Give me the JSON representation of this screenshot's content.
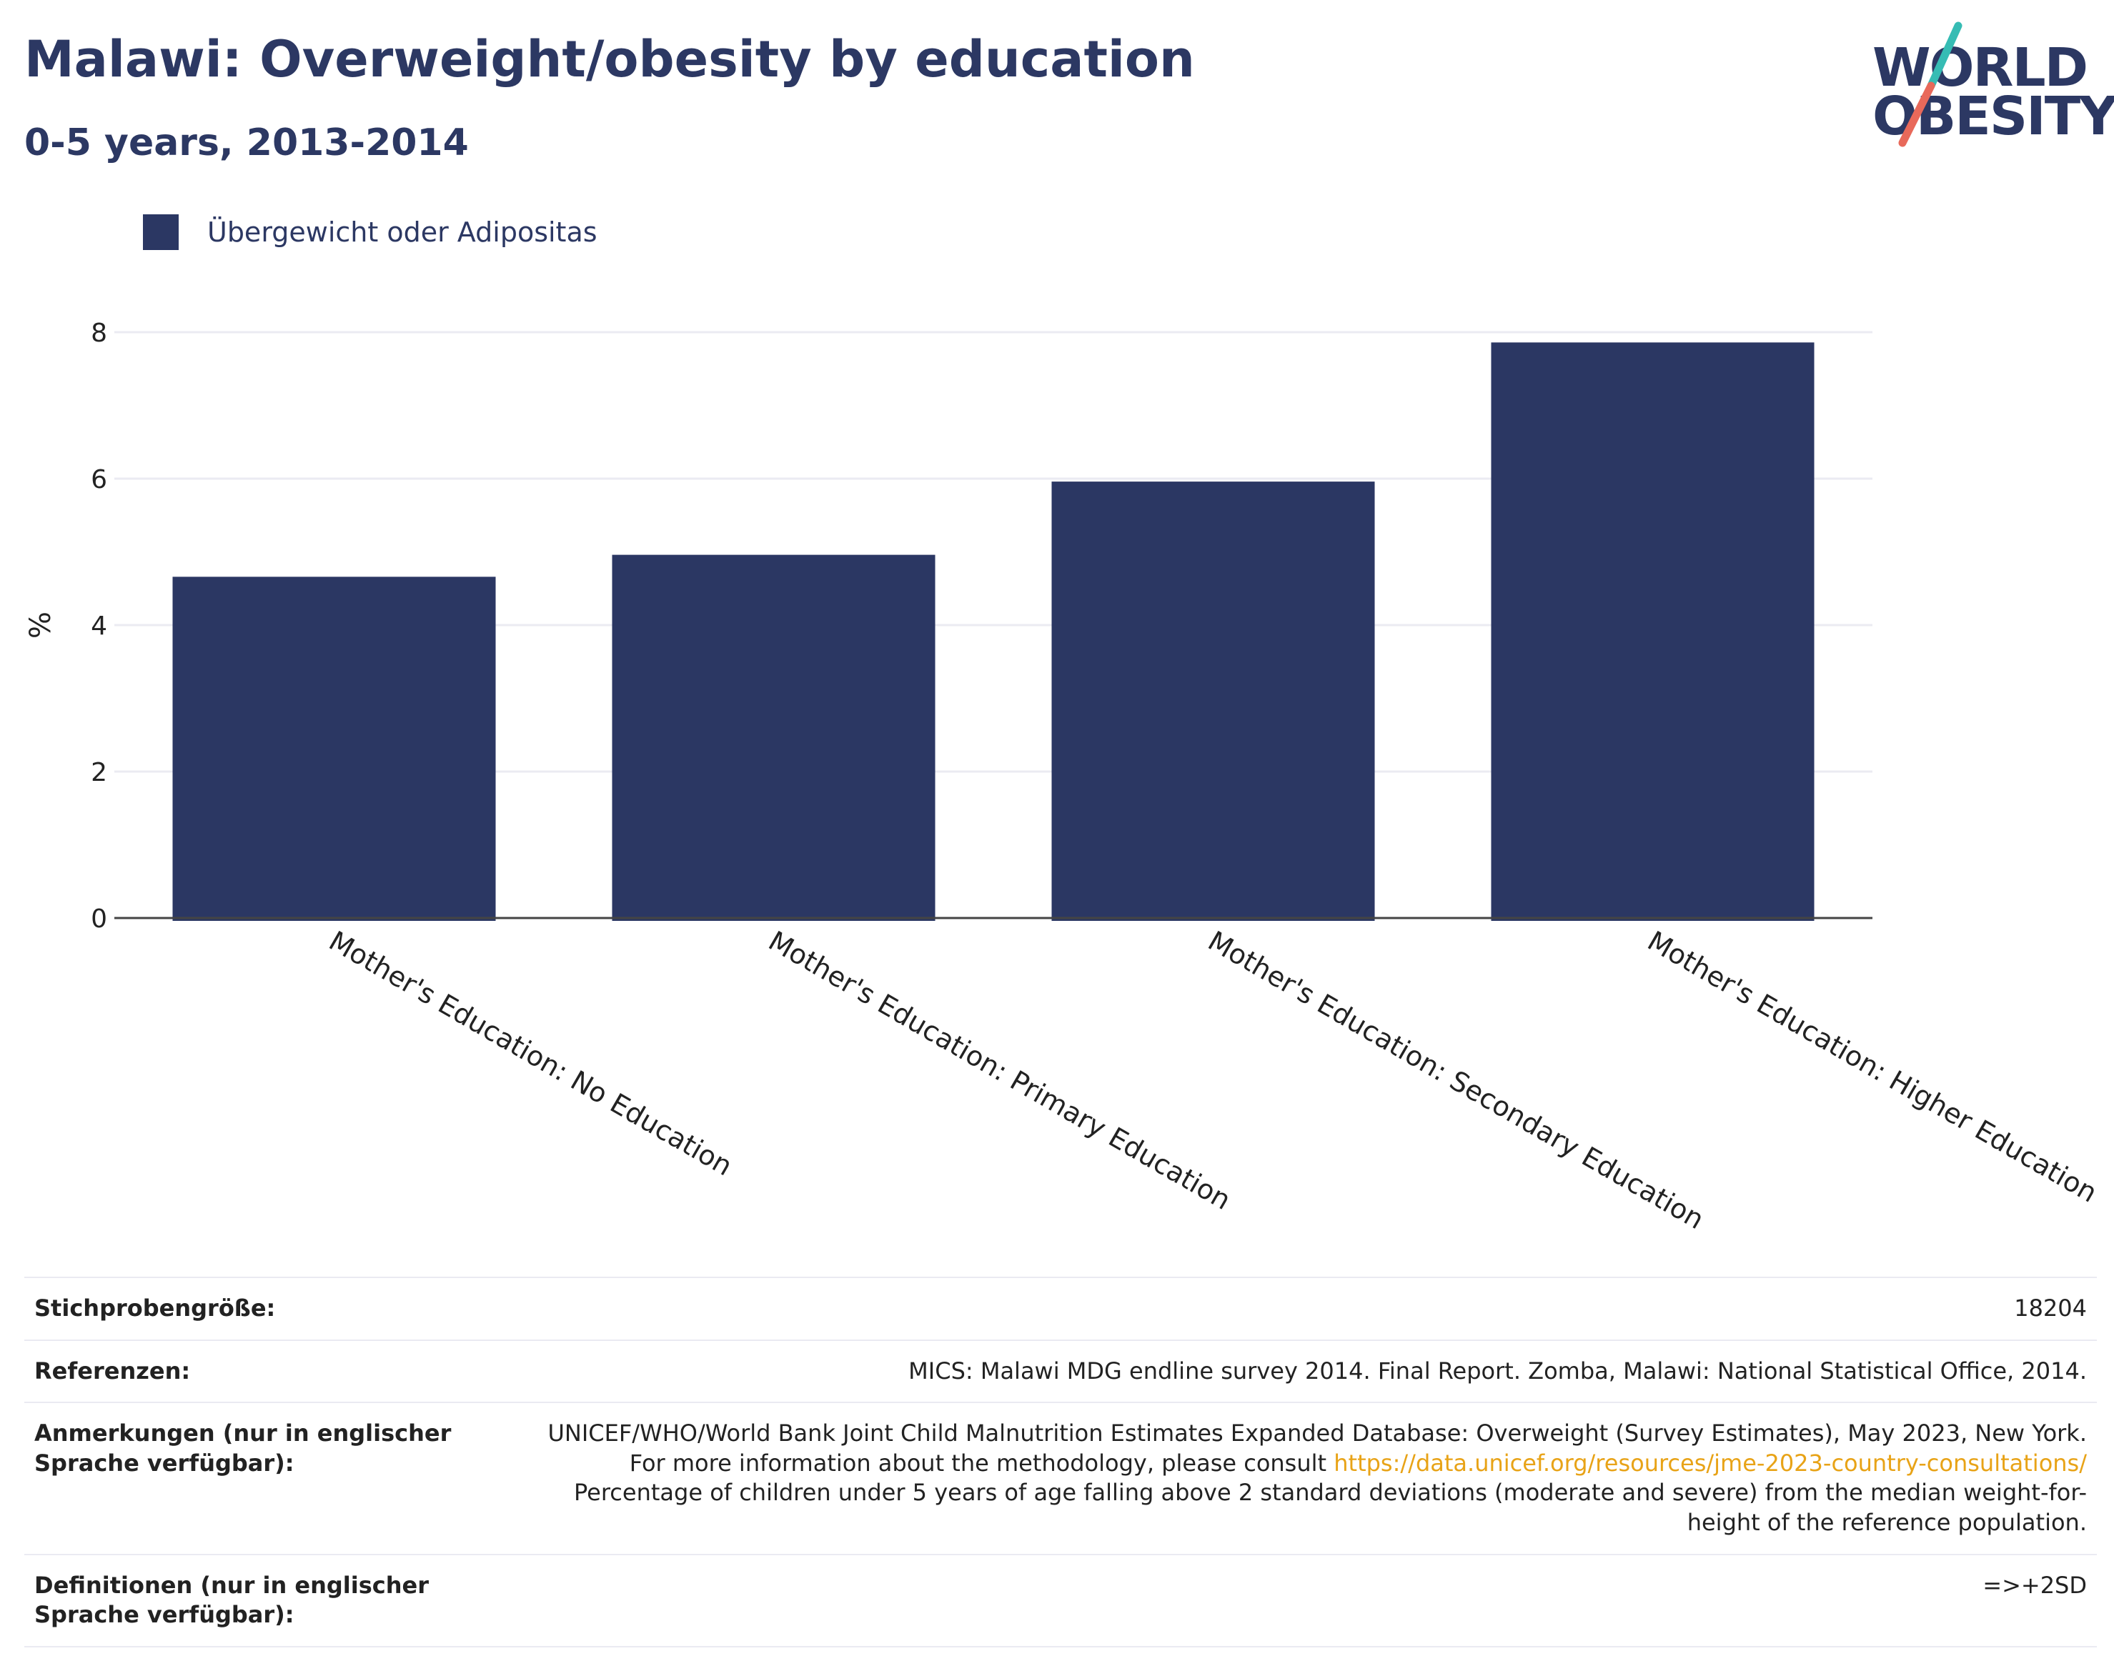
{
  "header": {
    "title": "Malawi: Overweight/obesity by education",
    "subtitle": "0-5 years, 2013-2014"
  },
  "logo": {
    "line1": "WORLD",
    "line2": "OBESITY",
    "colors": {
      "text": "#2c3863",
      "slash_top": "#36bcb4",
      "slash_bottom": "#e8695a"
    }
  },
  "legend": {
    "label": "Übergewicht oder Adipositas",
    "color": "#2b3763"
  },
  "chart_data": {
    "type": "bar",
    "categories": [
      "Mother's Education: No Education",
      "Mother's Education: Primary Education",
      "Mother's Education: Secondary Education",
      "Mother's Education: Higher Education"
    ],
    "series": [
      {
        "name": "Übergewicht oder Adipositas",
        "values": [
          4.66,
          4.96,
          5.96,
          7.86
        ],
        "color": "#2b3763"
      }
    ],
    "ylabel": "%",
    "ylim": [
      0,
      8.6
    ],
    "yticks": [
      0,
      2,
      4,
      6,
      8
    ],
    "grid": true,
    "legend_position": "top-left"
  },
  "footer": {
    "rows": [
      {
        "key": "Stichprobengröße:",
        "value": "18204"
      },
      {
        "key": "Referenzen:",
        "value": "MICS: Malawi MDG endline survey 2014. Final Report. Zomba, Malawi: National Statistical Office, 2014."
      },
      {
        "key": "Anmerkungen (nur in englischer Sprache verfügbar):",
        "value_part1": "UNICEF/WHO/World Bank Joint Child Malnutrition Estimates Expanded Database: Overweight (Survey Estimates), May 2023, New York. For more information about the methodology, please consult",
        "link": "https://data.unicef.org/resources/jme-2023-country-consultations/",
        "value_part2": "Percentage of children under 5 years of age falling above 2 standard deviations (moderate and severe) from the median weight-for-height of the reference population."
      },
      {
        "key": "Definitionen (nur in englischer Sprache verfügbar):",
        "value": "=>+2SD"
      }
    ]
  }
}
